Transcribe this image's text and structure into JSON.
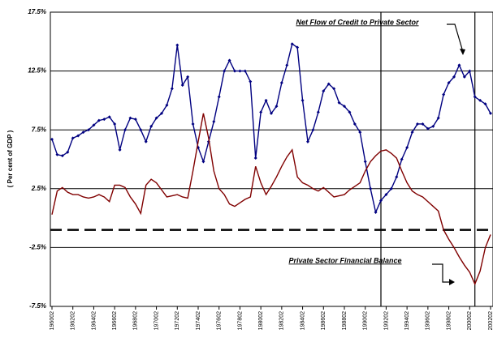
{
  "chart_data": {
    "type": "line",
    "y_label": "( Per cent of GDP )",
    "annotations": [
      "Net Flow of Credit to Private Sector",
      "Private Sector Financial Balance"
    ],
    "categories": [
      "196002",
      null,
      null,
      null,
      "196202",
      null,
      null,
      null,
      "196402",
      null,
      null,
      null,
      "196602",
      null,
      null,
      null,
      "196802",
      null,
      null,
      null,
      "197002",
      null,
      null,
      null,
      "197202",
      null,
      null,
      null,
      "197402",
      null,
      null,
      null,
      "197602",
      null,
      null,
      null,
      "197802",
      null,
      null,
      null,
      "198002",
      null,
      null,
      null,
      "198202",
      null,
      null,
      null,
      "198402",
      null,
      null,
      null,
      "198602",
      null,
      null,
      null,
      "198802",
      null,
      null,
      null,
      "199002",
      null,
      null,
      null,
      "199202",
      null,
      null,
      null,
      "199402",
      null,
      null,
      null,
      "199602",
      null,
      null,
      null,
      "199802",
      null,
      null,
      null,
      "200002",
      null,
      null,
      null,
      "200202"
    ],
    "series": [
      {
        "name": "Net Flow of Credit to Private Sector",
        "color": "#000080",
        "markers": true,
        "values": [
          6.7,
          5.4,
          5.3,
          5.6,
          6.8,
          7.0,
          7.3,
          7.5,
          7.9,
          8.3,
          8.4,
          8.6,
          8.0,
          5.8,
          7.5,
          8.5,
          8.4,
          7.5,
          6.5,
          7.8,
          8.5,
          8.9,
          9.6,
          11.0,
          14.7,
          11.3,
          12.0,
          8.0,
          6.0,
          4.8,
          6.5,
          8.2,
          10.3,
          12.5,
          13.4,
          12.5,
          12.5,
          12.5,
          11.6,
          5.1,
          9.0,
          10.0,
          8.9,
          9.5,
          11.5,
          13.0,
          14.8,
          14.5,
          10.0,
          6.5,
          7.5,
          9.0,
          10.8,
          11.4,
          11.0,
          9.8,
          9.5,
          9.0,
          8.0,
          7.3,
          4.8,
          2.5,
          0.5,
          1.5,
          2.0,
          2.5,
          3.5,
          5.0,
          6.0,
          7.3,
          8.0,
          8.0,
          7.6,
          7.8,
          8.5,
          10.5,
          11.5,
          12.0,
          13.0,
          12.0,
          12.5,
          10.3,
          10.0,
          9.7,
          8.9
        ]
      },
      {
        "name": "Private Sector Financial Balance",
        "color": "#800000",
        "markers": false,
        "values": [
          0.3,
          2.3,
          2.6,
          2.2,
          2.0,
          2.0,
          1.8,
          1.7,
          1.8,
          2.0,
          1.8,
          1.4,
          2.8,
          2.8,
          2.6,
          1.8,
          1.2,
          0.4,
          2.8,
          3.3,
          3.0,
          2.4,
          1.8,
          1.9,
          2.0,
          1.8,
          1.7,
          4.0,
          6.5,
          8.9,
          6.8,
          4.0,
          2.5,
          2.0,
          1.2,
          1.0,
          1.3,
          1.6,
          1.8,
          4.4,
          3.0,
          2.0,
          2.7,
          3.5,
          4.4,
          5.2,
          5.8,
          3.5,
          3.0,
          2.8,
          2.5,
          2.3,
          2.6,
          2.2,
          1.8,
          1.9,
          2.0,
          2.4,
          2.7,
          3.0,
          4.0,
          4.8,
          5.3,
          5.7,
          5.8,
          5.5,
          5.1,
          4.0,
          3.0,
          2.3,
          2.0,
          1.8,
          1.4,
          1.0,
          0.6,
          -1.0,
          -1.8,
          -2.5,
          -3.3,
          -4.0,
          -4.6,
          -5.6,
          -4.5,
          -2.5,
          -1.4
        ]
      }
    ],
    "ylim": [
      -7.5,
      17.5
    ],
    "yticks": [
      {
        "value": -7.5,
        "label": "-7.5%"
      },
      {
        "value": -2.5,
        "label": "-2.5%"
      },
      {
        "value": 2.5,
        "label": "2.5%"
      },
      {
        "value": 7.5,
        "label": "7.5%"
      },
      {
        "value": 12.5,
        "label": "12.5%"
      },
      {
        "value": 17.5,
        "label": "17.5%"
      }
    ],
    "grid": true,
    "reference_line": -1,
    "vertical_lines": [
      63,
      81
    ]
  }
}
